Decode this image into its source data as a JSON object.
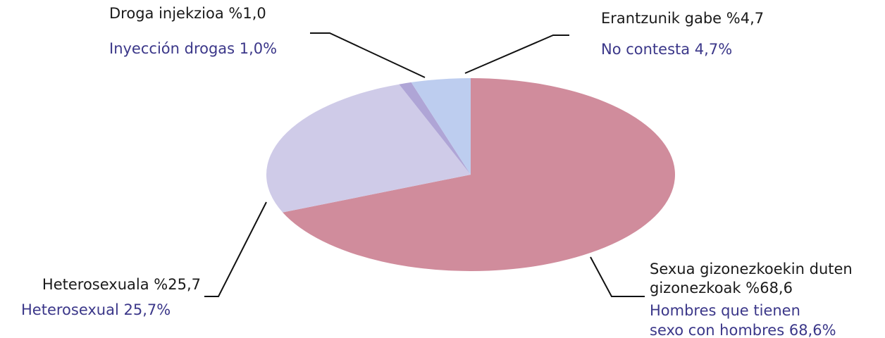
{
  "chart_data": {
    "type": "pie",
    "categories_eu": [
      [
        "Sexua gizonezkoekin duten",
        "gizonezkoak %68,6"
      ],
      [
        "Heterosexuala %25,7"
      ],
      [
        "Droga injekzioa %1,0"
      ],
      [
        "Erantzunik gabe %4,7"
      ]
    ],
    "categories_es": [
      [
        "Hombres que tienen",
        "sexo con hombres 68,6%"
      ],
      [
        "Heterosexual 25,7%"
      ],
      [
        "Inyección drogas 1,0%"
      ],
      [
        "No contesta 4,7%"
      ]
    ],
    "values": [
      68.6,
      25.7,
      1.0,
      4.7
    ],
    "colors": [
      "#d08c9c",
      "#cfcbe8",
      "#afa5d6",
      "#bdcdef"
    ],
    "label_colors": [
      "#1a1a1a",
      "#3b3789"
    ]
  }
}
